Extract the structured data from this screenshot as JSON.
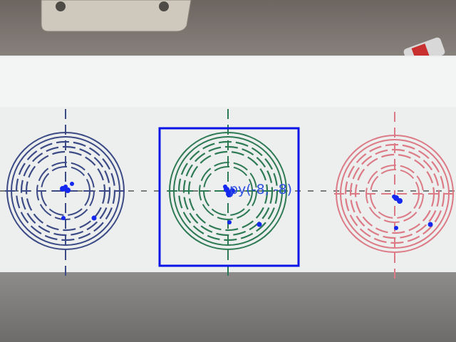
{
  "image": {
    "kind": "camera frame of three concentric-ring targets on a white strip",
    "overlay_color": "#0a14e6",
    "marker_color": "#1428f0"
  },
  "targets": [
    {
      "name": "left",
      "color": "#3c4a86"
    },
    {
      "name": "center",
      "color": "#2e7a54",
      "selected": true
    },
    {
      "name": "right",
      "color": "#dc7a86"
    }
  ],
  "readout": {
    "label": "py(-8, -8)"
  }
}
